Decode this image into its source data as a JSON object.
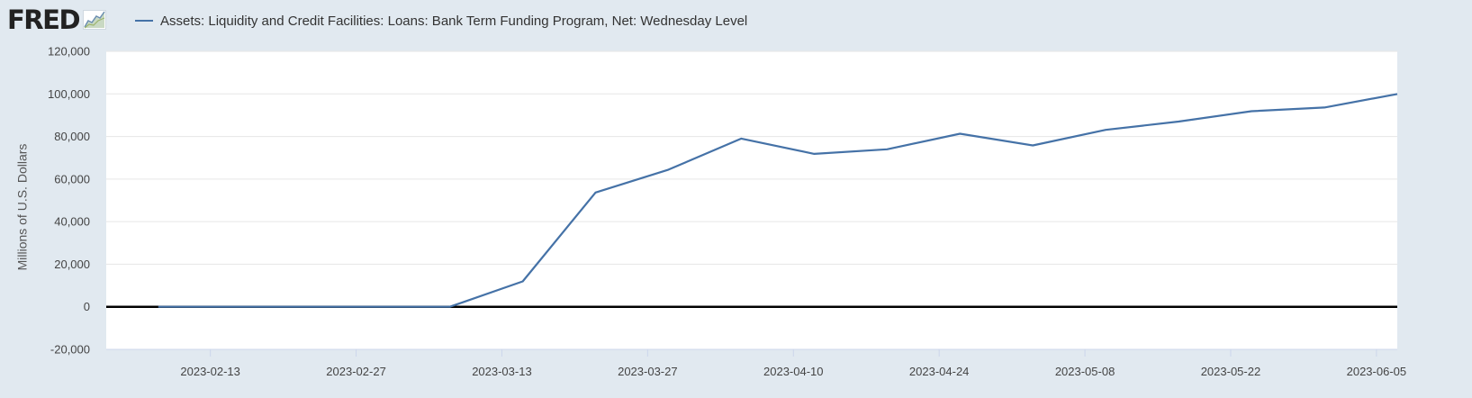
{
  "header": {
    "logo_text": "FRED",
    "legend_label": "Assets: Liquidity and Credit Facilities: Loans: Bank Term Funding Program, Net: Wednesday Level"
  },
  "colors": {
    "series": "#4572a7",
    "background": "#e1e9f0",
    "plot": "#ffffff",
    "zero_line": "#000000"
  },
  "chart_data": {
    "type": "line",
    "title": "",
    "xlabel": "",
    "ylabel": "Millions of U.S. Dollars",
    "ylim": [
      -20000,
      120000
    ],
    "xlim": [
      "2023-02-03",
      "2023-06-07"
    ],
    "y_ticks": [
      "-20,000",
      "0",
      "20,000",
      "40,000",
      "60,000",
      "80,000",
      "100,000",
      "120,000"
    ],
    "y_tick_values": [
      -20000,
      0,
      20000,
      40000,
      60000,
      80000,
      100000,
      120000
    ],
    "x_ticks": [
      "2023-02-13",
      "2023-02-27",
      "2023-03-13",
      "2023-03-27",
      "2023-04-10",
      "2023-04-24",
      "2023-05-08",
      "2023-05-22",
      "2023-06-05"
    ],
    "grid": true,
    "legend_position": "top-left",
    "series": [
      {
        "name": "Assets: Liquidity and Credit Facilities: Loans: Bank Term Funding Program, Net: Wednesday Level",
        "x": [
          "2023-02-08",
          "2023-02-15",
          "2023-02-22",
          "2023-03-01",
          "2023-03-08",
          "2023-03-15",
          "2023-03-22",
          "2023-03-29",
          "2023-04-05",
          "2023-04-12",
          "2023-04-19",
          "2023-04-26",
          "2023-05-03",
          "2023-05-10",
          "2023-05-17",
          "2023-05-24",
          "2023-05-31",
          "2023-06-07"
        ],
        "values": [
          0,
          0,
          0,
          0,
          0,
          11943,
          53669,
          64403,
          79021,
          71840,
          73982,
          81287,
          75813,
          83098,
          87002,
          91858,
          93608,
          99948
        ]
      }
    ]
  }
}
